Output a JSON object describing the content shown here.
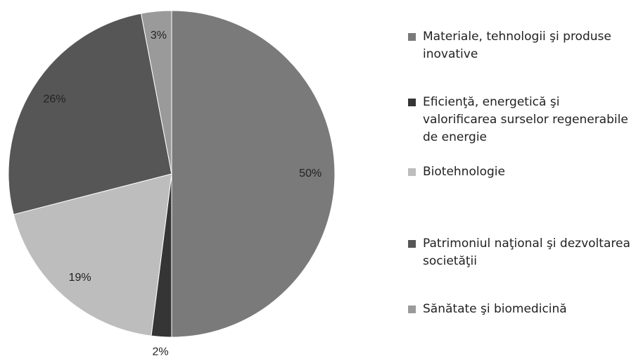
{
  "chart_data": {
    "type": "pie",
    "categories": [
      "Materiale, tehnologii şi produse inovative",
      "Eficienţă, energetică şi valorificarea surselor regenerabile de energie",
      "Biotehnologie",
      "Patrimoniul naţional şi dezvoltarea societăţii",
      "Sănătate şi biomedicină"
    ],
    "values": [
      50,
      2,
      19,
      26,
      3
    ],
    "value_labels": [
      "50%",
      "2%",
      "19%",
      "26%",
      "3%"
    ],
    "colors": [
      "#7a7a7a",
      "#353535",
      "#bdbdbd",
      "#565656",
      "#9a9a9a"
    ],
    "legend": "right"
  }
}
